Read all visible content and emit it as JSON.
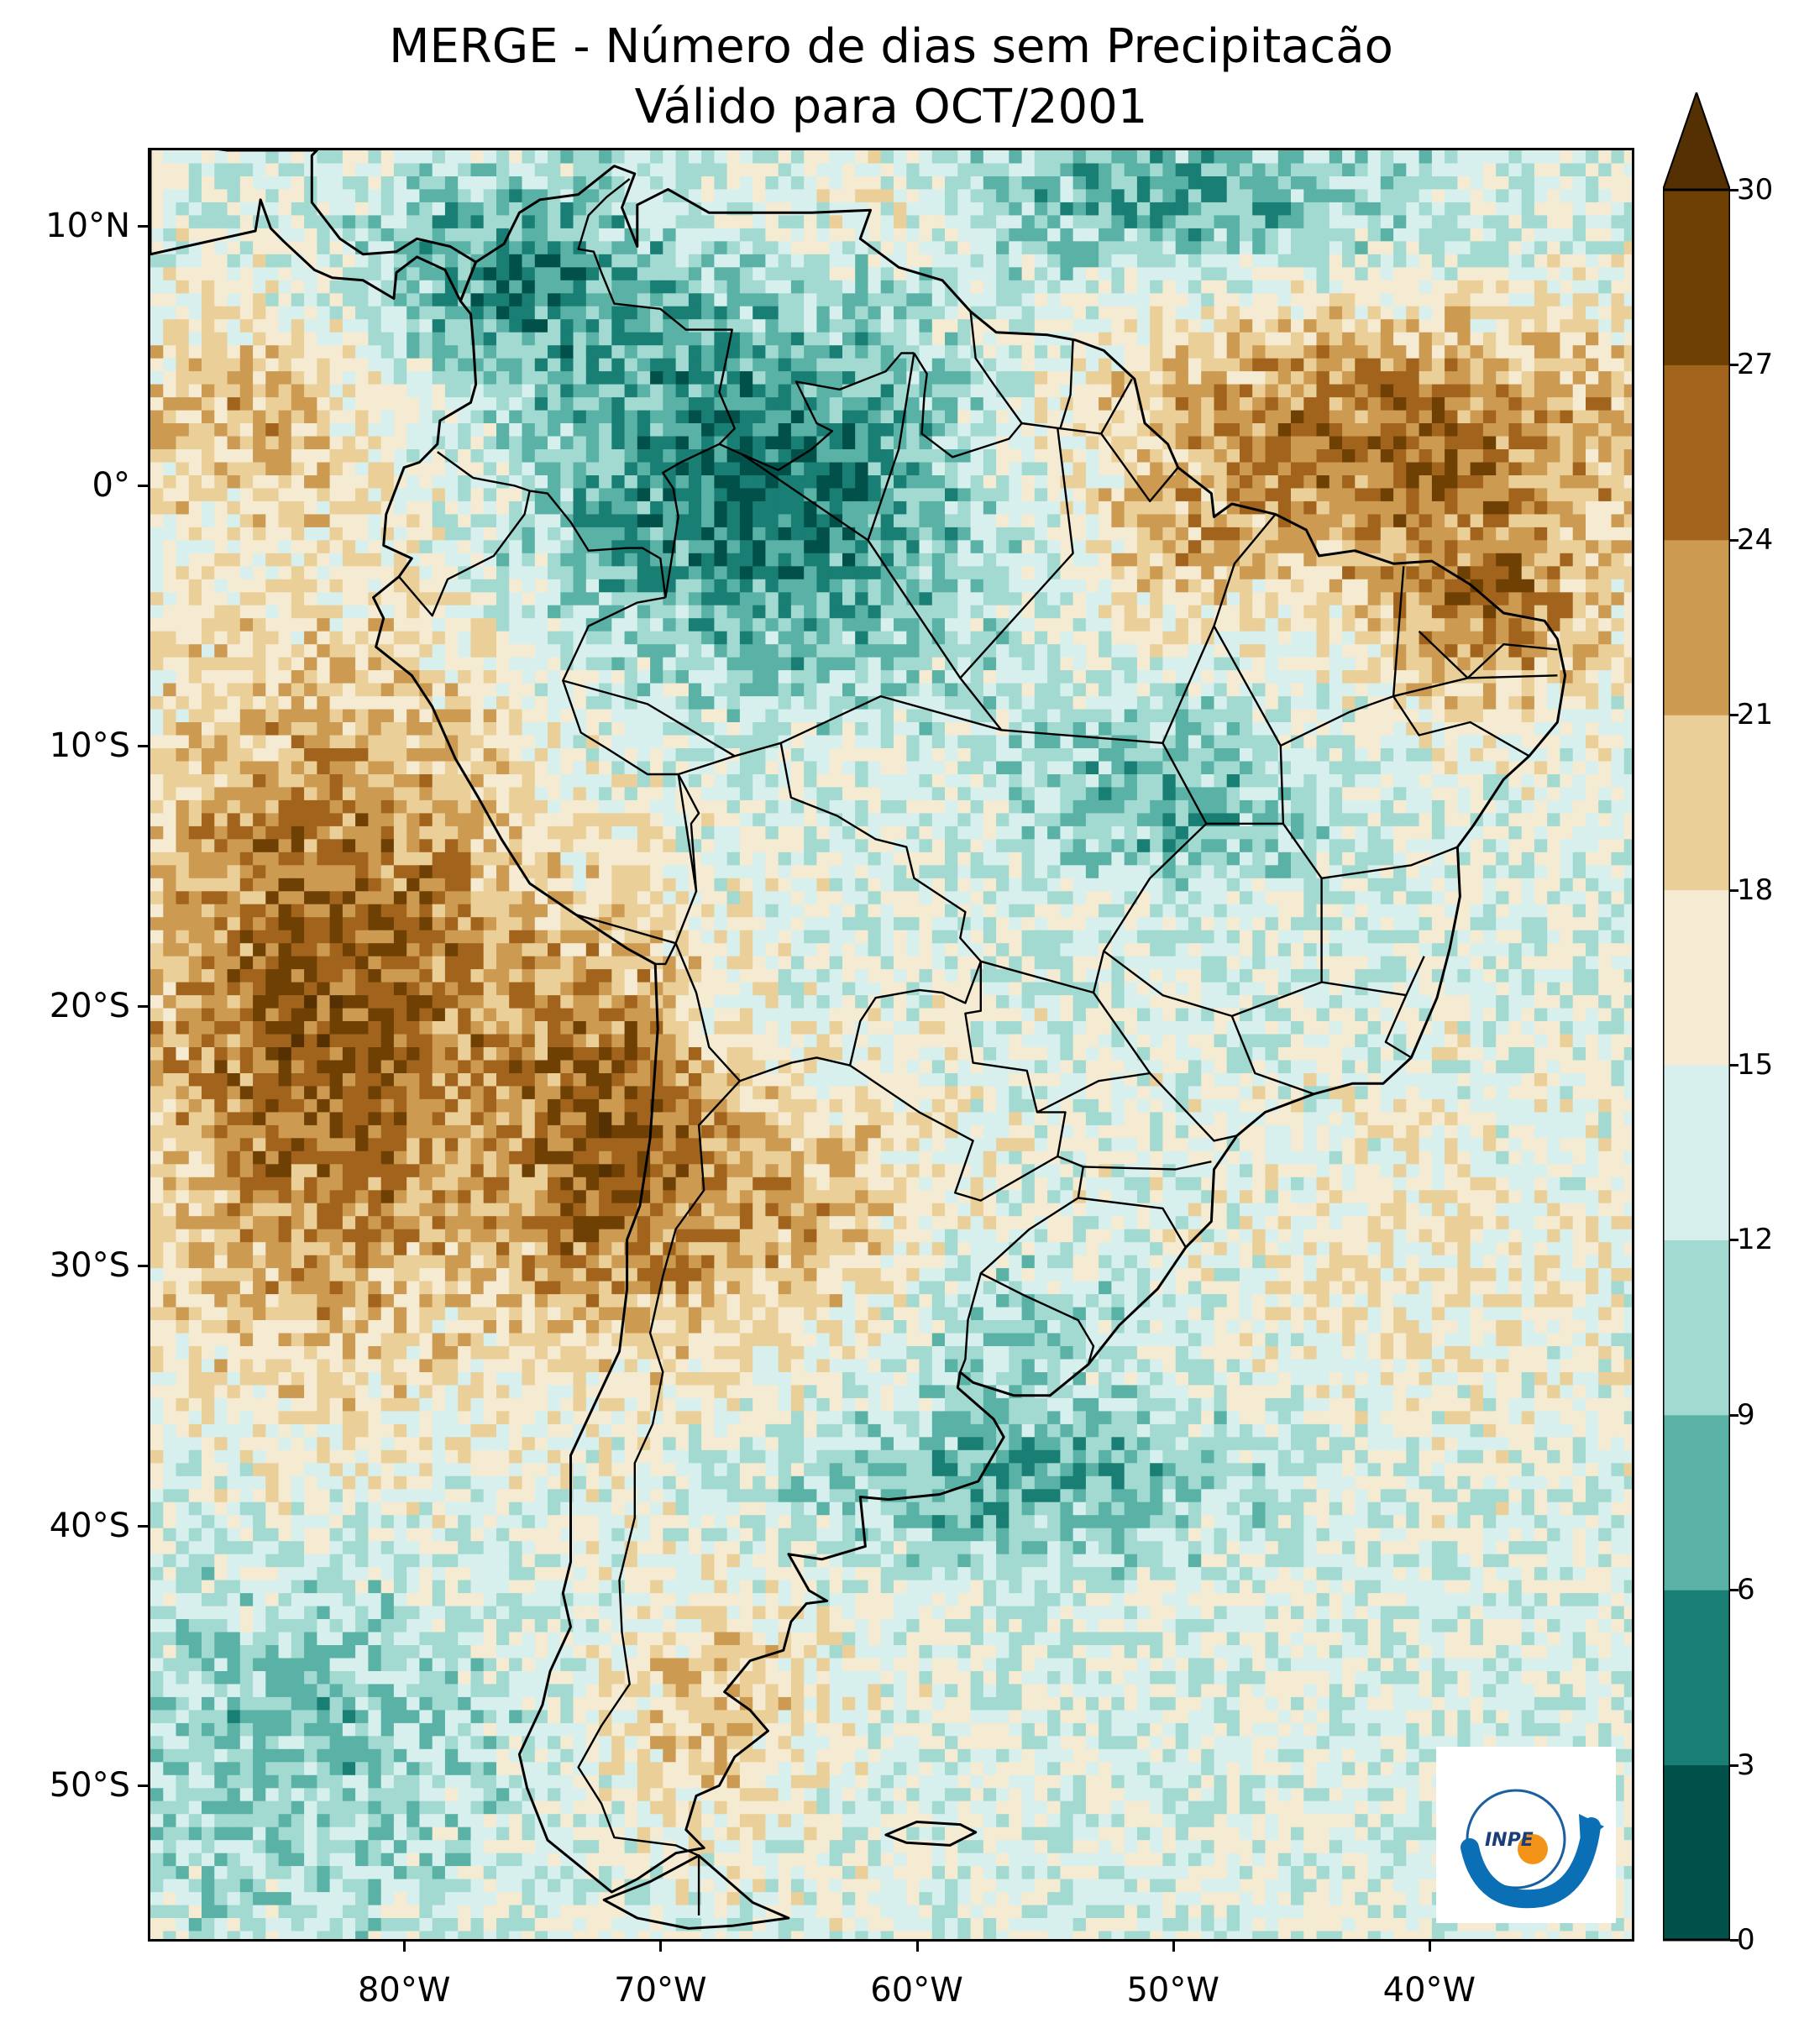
{
  "title": {
    "line1": "MERGE - Número de dias sem Precipitacão",
    "line2": "Válido para OCT/2001"
  },
  "y_axis": {
    "ticks": [
      {
        "value": 10,
        "label": "10°N"
      },
      {
        "value": 0,
        "label": "0°"
      },
      {
        "value": -10,
        "label": "10°S"
      },
      {
        "value": -20,
        "label": "20°S"
      },
      {
        "value": -30,
        "label": "30°S"
      },
      {
        "value": -40,
        "label": "40°S"
      },
      {
        "value": -50,
        "label": "50°S"
      }
    ]
  },
  "x_axis": {
    "ticks": [
      {
        "value": -80,
        "label": "80°W"
      },
      {
        "value": -70,
        "label": "70°W"
      },
      {
        "value": -60,
        "label": "60°W"
      },
      {
        "value": -50,
        "label": "50°W"
      },
      {
        "value": -40,
        "label": "40°W"
      }
    ]
  },
  "map_extent": {
    "lon_min": -90,
    "lon_max": -32,
    "lat_min": -56,
    "lat_max": 13
  },
  "colorbar": {
    "levels": [
      0,
      3,
      6,
      9,
      12,
      15,
      18,
      21,
      24,
      27,
      30
    ],
    "labels": [
      "0",
      "3",
      "6",
      "9",
      "12",
      "15",
      "18",
      "21",
      "24",
      "27",
      "30"
    ],
    "colors": [
      "#01514a",
      "#197f74",
      "#5ab2a7",
      "#a2d9d1",
      "#d7efed",
      "#f5ebd2",
      "#eacf98",
      "#cd9a51",
      "#a2641c",
      "#6f4004"
    ],
    "extend": "max",
    "extend_color": "#553003"
  },
  "logo": {
    "text": "INPE",
    "arrow_color": "#0a6fb5",
    "dot_color": "#f39419"
  }
}
